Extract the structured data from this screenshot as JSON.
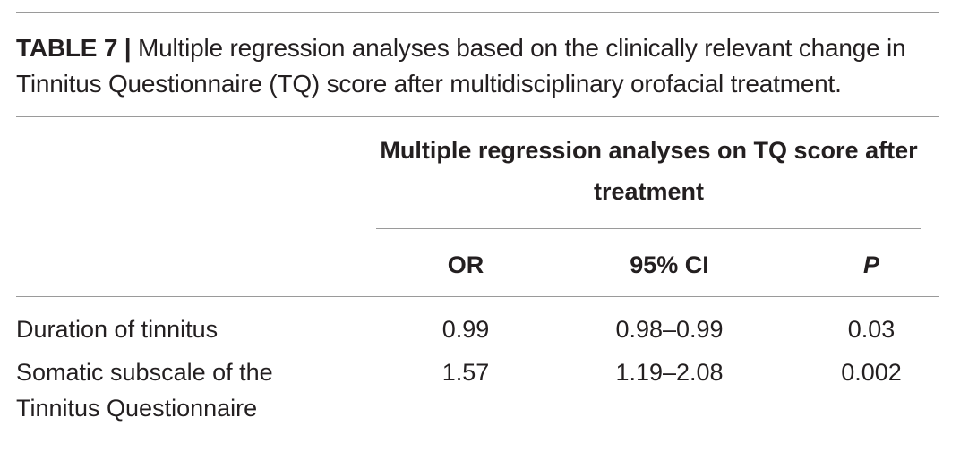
{
  "caption": {
    "label": "TABLE 7 |",
    "text": "Multiple regression analyses based on the clinically relevant change in Tinnitus Questionnaire (TQ) score after multidisciplinary orofacial treatment."
  },
  "table": {
    "group_header": "Multiple regression analyses on TQ score after treatment",
    "columns": [
      "OR",
      "95% CI",
      "P"
    ],
    "rows": [
      {
        "label": "Duration of tinnitus",
        "or": "0.99",
        "ci": "0.98–0.99",
        "p": "0.03"
      },
      {
        "label": "Somatic subscale of the Tinnitus Questionnaire",
        "or": "1.57",
        "ci": "1.19–2.08",
        "p": "0.002"
      }
    ]
  }
}
